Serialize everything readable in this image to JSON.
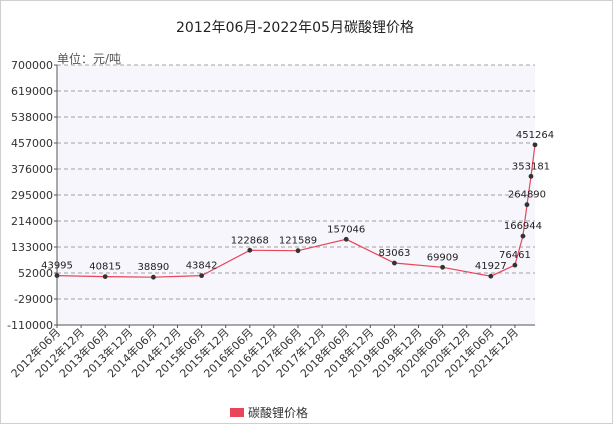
{
  "chart_data": {
    "type": "line",
    "title": "2012年06月-2022年05月碳酸锂价格",
    "unit_label": "单位：元/吨",
    "yticks": [
      "700000",
      "619000",
      "538000",
      "457000",
      "376000",
      "295000",
      "214000",
      "133000",
      "52000",
      "-29000",
      "-110000"
    ],
    "ylim": [
      -110000,
      700000
    ],
    "grid": "horizontal dashed",
    "legend_position": "bottom",
    "categories": [
      "2012年06月",
      "2012年12月",
      "2013年06月",
      "2013年12月",
      "2014年06月",
      "2014年12月",
      "2015年06月",
      "2015年12月",
      "2016年06月",
      "2016年12月",
      "2017年06月",
      "2017年12月",
      "2018年06月",
      "2018年12月",
      "2019年06月",
      "2019年12月",
      "2020年06月",
      "2020年12月",
      "2021年06月",
      "2021年12月"
    ],
    "series": [
      {
        "name": "碳酸锂价格",
        "color": "#e8455a",
        "points": [
          {
            "x": "2012年06月",
            "y": 43995,
            "label": "43995"
          },
          {
            "x": "2013年06月",
            "y": 40815,
            "label": "40815"
          },
          {
            "x": "2014年06月",
            "y": 38890,
            "label": "38890"
          },
          {
            "x": "2015年06月",
            "y": 43842,
            "label": "43842"
          },
          {
            "x": "2016年06月",
            "y": 122868,
            "label": "122868"
          },
          {
            "x": "2017年06月",
            "y": 121589,
            "label": "121589"
          },
          {
            "x": "2018年06月",
            "y": 157046,
            "label": "157046"
          },
          {
            "x": "2019年06月",
            "y": 83063,
            "label": "83063"
          },
          {
            "x": "2020年06月",
            "y": 69909,
            "label": "69909"
          },
          {
            "x": "2021年06月",
            "y": 41927,
            "label": "41927"
          },
          {
            "x": "2021年12月",
            "y": 76461,
            "label": "76461"
          },
          {
            "x": "2022年02月",
            "y": 166944,
            "label": "166944"
          },
          {
            "x": "2022年03月",
            "y": 264890,
            "label": "264890"
          },
          {
            "x": "2022年04月",
            "y": 353181,
            "label": "353181"
          },
          {
            "x": "2022年05月",
            "y": 451264,
            "label": "451264"
          }
        ]
      }
    ]
  }
}
